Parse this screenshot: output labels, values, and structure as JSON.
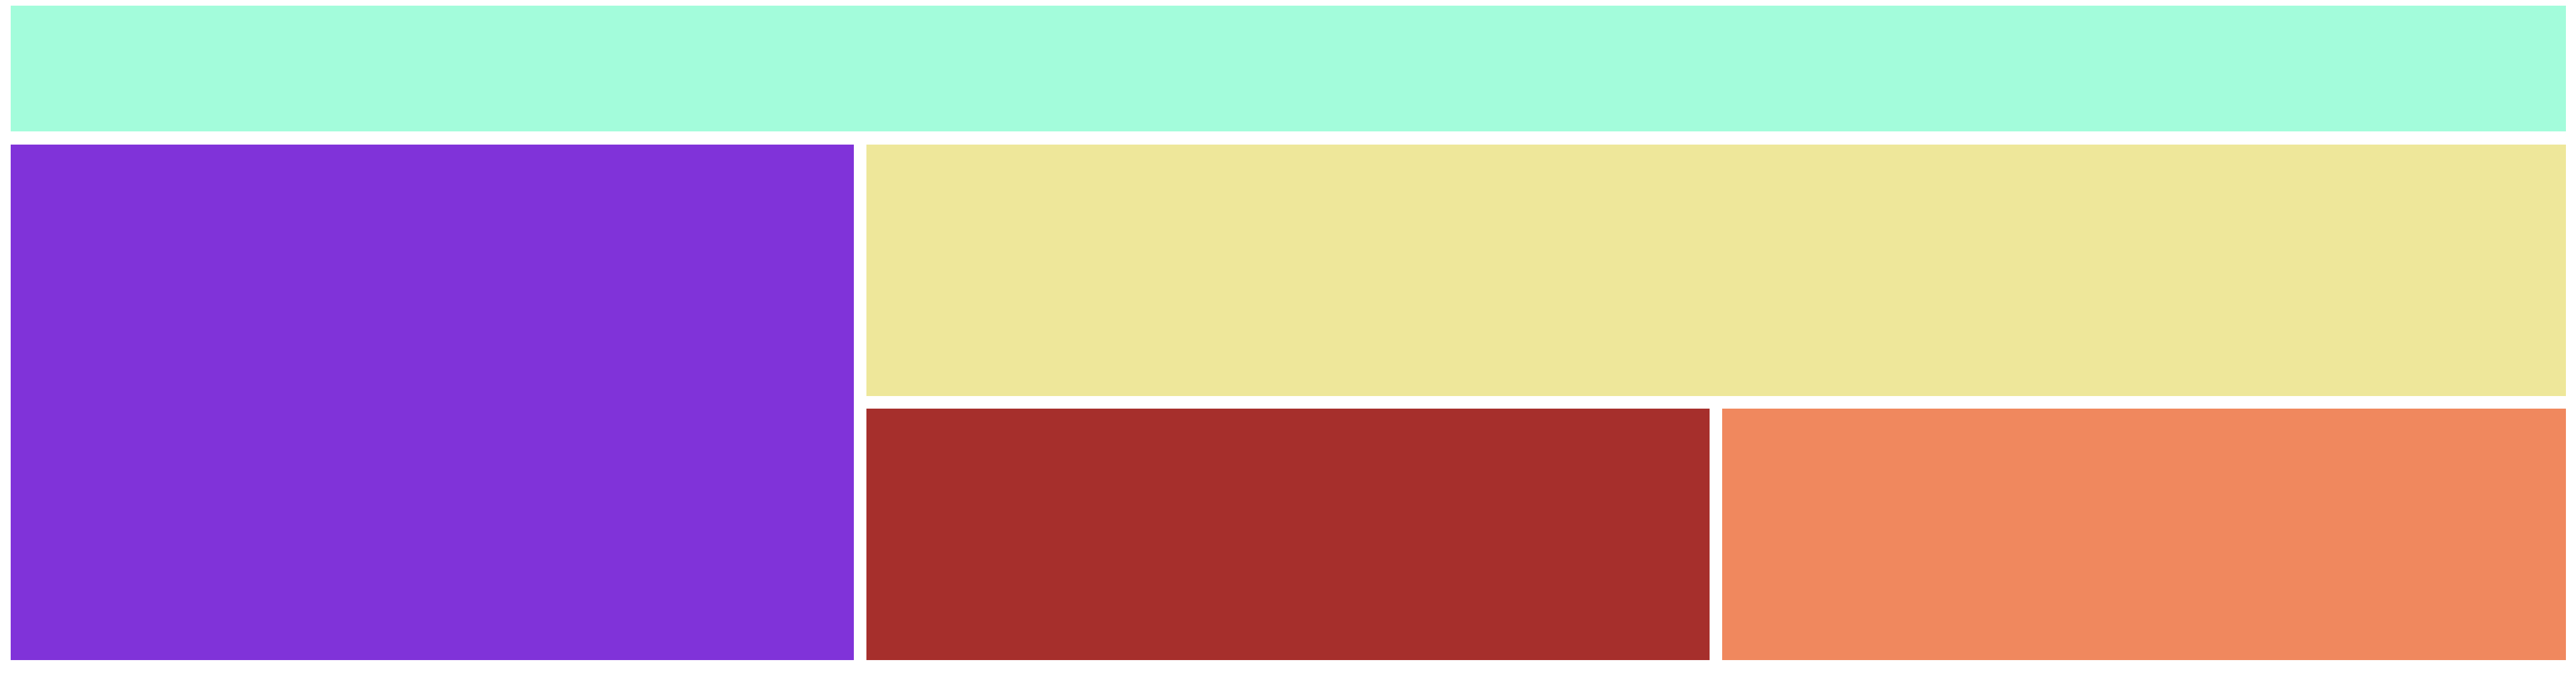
{
  "blocks": [
    {
      "id": "block-top",
      "name": "top-band-block",
      "color": "#A3FCDB"
    },
    {
      "id": "block-left",
      "name": "left-purple-block",
      "color": "#8033D9"
    },
    {
      "id": "block-right-top",
      "name": "right-top-yellow-block",
      "color": "#EEE79A"
    },
    {
      "id": "block-bottom-left",
      "name": "bottom-middle-red-block",
      "color": "#A62F2C"
    },
    {
      "id": "block-bottom-right",
      "name": "bottom-right-orange-block",
      "color": "#F0885E"
    }
  ]
}
